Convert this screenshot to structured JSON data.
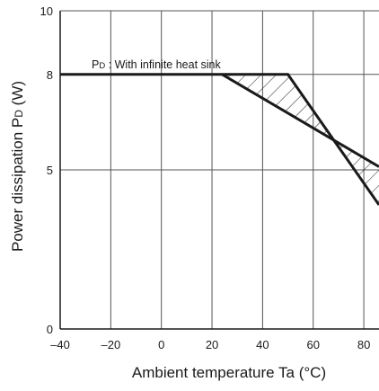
{
  "chart_data": {
    "type": "line",
    "title": "",
    "xlabel": "Ambient temperature Ta (°C)",
    "ylabel": "Power dissipation P",
    "ylabel_sub": "D",
    "ylabel_unit": " (W)",
    "xlim": [
      -40,
      86
    ],
    "ylim": [
      0,
      10
    ],
    "x_ticks": [
      -40,
      -20,
      0,
      20,
      40,
      60,
      80
    ],
    "x_tick_labels": [
      "–40",
      "–20",
      "0",
      "20",
      "40",
      "60",
      "80"
    ],
    "y_ticks": [
      0,
      5,
      8,
      10
    ],
    "y_tick_labels": [
      "0",
      "5",
      "8",
      "10"
    ],
    "grid": true,
    "series": [
      {
        "name": "",
        "x": [
          -40,
          50,
          86
        ],
        "y": [
          8,
          8,
          3.9
        ]
      },
      {
        "name": "",
        "x": [
          24,
          86
        ],
        "y": [
          8,
          5.1
        ]
      }
    ],
    "hatched_region": {
      "upper": [
        [
          24,
          8
        ],
        [
          50,
          8
        ],
        [
          86,
          3.9
        ]
      ],
      "lower": [
        [
          24,
          8
        ],
        [
          86,
          5.1
        ]
      ]
    },
    "annotation": {
      "prefix": "P",
      "sub": "D",
      "text": " : With infinite heat sink",
      "x": 20,
      "y": 8
    },
    "colors": {
      "line": "#1a1a1a",
      "grid": "#555555",
      "background": "#ffffff"
    }
  }
}
